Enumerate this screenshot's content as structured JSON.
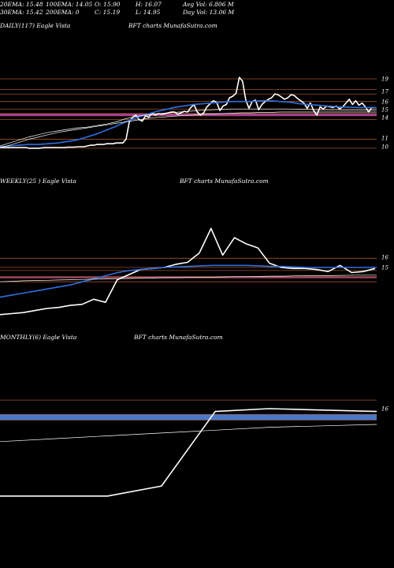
{
  "header": {
    "ema20": "20EMA: 15.48",
    "ema100": "100EMA: 14.05",
    "open": "O: 15.90",
    "high": "H: 16.07",
    "avgvol": "Avg Vol: 6.806  M",
    "ema30": "30EMA: 15.42",
    "ema200": "200EMA: 0",
    "close": "C: 15.19",
    "low": "L: 14.95",
    "dayvol": "Day Vol: 13.06  M"
  },
  "colors": {
    "background": "#000000",
    "price": "#ffffff",
    "ema_fast": "#2f6fe0",
    "ema_slow": "#ffffff",
    "resistance": "#a0522d",
    "support_band": "#c040c0",
    "monthly_band": "#4a7fd8"
  },
  "chart_data": [
    {
      "type": "line",
      "title": "DAILY(117) Eagle  Vista",
      "watermark": "BFT charts MunafaSutra.com",
      "y_ticks": [
        "19",
        "17",
        "16",
        "15",
        "14",
        "11",
        "10"
      ],
      "ylim": [
        9.5,
        20
      ],
      "levels": [
        19,
        17.6,
        17,
        16,
        15,
        14.4,
        14.1,
        13.6,
        11,
        9.8
      ],
      "support_band": [
        14.1,
        14.4
      ],
      "series": [
        {
          "role": "price",
          "values": [
            9.9,
            9.9,
            9.9,
            9.9,
            9.9,
            9.9,
            9.9,
            9.9,
            9.9,
            9.8,
            9.8,
            9.8,
            9.8,
            9.85,
            9.9,
            9.9,
            9.9,
            9.9,
            9.9,
            9.9,
            9.9,
            9.95,
            9.95,
            9.95,
            10.0,
            10.0,
            10.0,
            10.1,
            10.2,
            10.2,
            10.3,
            10.3,
            10.3,
            10.4,
            10.4,
            10.4,
            10.5,
            10.5,
            10.5,
            11.0,
            13.3,
            13.9,
            14.2,
            13.6,
            13.4,
            14.1,
            13.9,
            14.5,
            14.2,
            14.4,
            14.3,
            14.4,
            14.5,
            14.6,
            14.6,
            14.3,
            14.5,
            14.7,
            14.6,
            15.2,
            15.6,
            14.6,
            14.2,
            14.5,
            15.3,
            15.7,
            16.1,
            15.9,
            14.8,
            15.4,
            15.6,
            16.5,
            16.7,
            17.1,
            19.2,
            18.7,
            16.2,
            15.1,
            16.0,
            16.2,
            14.9,
            15.6,
            16.0,
            16.3,
            16.5,
            17.0,
            16.9,
            16.6,
            16.3,
            16.5,
            16.9,
            16.8,
            16.4,
            16.1,
            15.8,
            15.1,
            15.8,
            14.8,
            14.2,
            15.3,
            15.0,
            15.4,
            15.3,
            15.2,
            15.4,
            15.0,
            15.3,
            15.8,
            16.3,
            15.6,
            16.1,
            15.5,
            15.8,
            15.3,
            14.6,
            15.2,
            15.19
          ]
        },
        {
          "role": "ema-fast",
          "values": [
            10.0,
            10.1,
            10.2,
            10.3,
            10.3,
            10.4,
            10.5,
            10.7,
            10.9,
            11.3,
            11.7,
            12.2,
            12.7,
            13.3,
            13.8,
            14.2,
            14.6,
            14.9,
            15.2,
            15.4,
            15.6,
            15.7,
            15.8,
            15.9,
            16.0,
            16.0,
            16.0,
            16.1,
            16.1,
            16.0,
            15.9,
            15.7,
            15.6,
            15.5,
            15.4,
            15.3,
            15.25,
            15.2,
            15.2,
            15.19
          ]
        },
        {
          "role": "ema-slow",
          "values": [
            10.1,
            10.5,
            10.9,
            11.3,
            11.6,
            11.9,
            12.1,
            12.3,
            12.5,
            12.6,
            12.8,
            13.0,
            13.3,
            13.7,
            14.0,
            14.2,
            14.3,
            14.45,
            14.55,
            14.65,
            14.75,
            14.85,
            14.9,
            14.95,
            15.0,
            15.0,
            15.0,
            15.0,
            15.0,
            15.0,
            15.0,
            14.95,
            14.95,
            14.9,
            14.9,
            14.9,
            14.85,
            14.85,
            14.85,
            14.85
          ]
        },
        {
          "role": "ema-slow-2",
          "values": [
            9.9,
            10.2,
            10.6,
            11.0,
            11.3,
            11.6,
            11.9,
            12.1,
            12.3,
            12.5,
            12.7,
            12.9,
            13.1,
            13.3,
            13.5,
            13.7,
            13.85,
            13.95,
            14.05,
            14.15,
            14.2,
            14.3,
            14.35,
            14.4,
            14.45,
            14.5,
            14.5,
            14.55,
            14.55,
            14.6,
            14.6,
            14.6,
            14.6,
            14.6,
            14.6,
            14.6,
            14.6,
            14.6,
            14.6,
            14.6
          ]
        }
      ]
    },
    {
      "type": "line",
      "title": "WEEKLY(25                    ) Eagle  Vista",
      "watermark": "BFT charts MunafaSutra.com",
      "y_ticks": [
        "16",
        "15"
      ],
      "ylim": [
        9.5,
        20
      ],
      "levels": [
        15.9,
        15.0,
        14.7,
        14.1,
        14.0,
        13.6
      ],
      "support_band": [
        14.0,
        14.1
      ],
      "series": [
        {
          "role": "price",
          "values": [
            10.4,
            10.5,
            10.6,
            10.8,
            11.0,
            11.1,
            11.3,
            11.4,
            11.9,
            11.6,
            13.8,
            14.3,
            14.8,
            14.9,
            15.0,
            15.3,
            15.5,
            16.4,
            18.8,
            16.2,
            17.9,
            17.3,
            16.9,
            15.4,
            15.0,
            14.9,
            14.9,
            14.8,
            14.6,
            15.2,
            14.5,
            14.6,
            14.9
          ]
        },
        {
          "role": "ema-fast",
          "values": [
            12.1,
            12.3,
            12.5,
            12.7,
            12.9,
            13.1,
            13.3,
            13.6,
            13.9,
            14.2,
            14.5,
            14.7,
            14.8,
            14.9,
            15.0,
            15.05,
            15.1,
            15.15,
            15.2,
            15.2,
            15.2,
            15.2,
            15.15,
            15.1,
            15.1,
            15.05,
            15.0,
            15.0,
            15.0,
            15.0,
            15.0,
            15.0,
            15.0
          ]
        },
        {
          "role": "ema-slow",
          "values": [
            13.6,
            13.65,
            13.7,
            13.72,
            13.75,
            13.78,
            13.8,
            13.82,
            13.85,
            13.88,
            13.9,
            13.92,
            13.95,
            13.97,
            14.0,
            14.0,
            14.02,
            14.05,
            14.05,
            14.08,
            14.1,
            14.1,
            14.12,
            14.15,
            14.15,
            14.18,
            14.2,
            14.2,
            14.2,
            14.22,
            14.25,
            14.25,
            14.25
          ]
        }
      ]
    },
    {
      "type": "line",
      "title": "MONTHLY(6) Eagle  Vista",
      "watermark": "BFT charts MunafaSutra.com",
      "y_ticks": [
        "16"
      ],
      "ylim": [
        9.5,
        20
      ],
      "levels": [
        16.6,
        15.6,
        15.2
      ],
      "support_band": [
        15.2,
        15.6
      ],
      "series": [
        {
          "role": "price",
          "values": [
            9.9,
            9.9,
            9.9,
            10.6,
            15.8,
            16.0,
            15.9,
            15.8
          ]
        },
        {
          "role": "ema-slow",
          "values": [
            13.7,
            13.9,
            14.1,
            14.3,
            14.5,
            14.7,
            14.8,
            14.9
          ]
        }
      ]
    }
  ]
}
